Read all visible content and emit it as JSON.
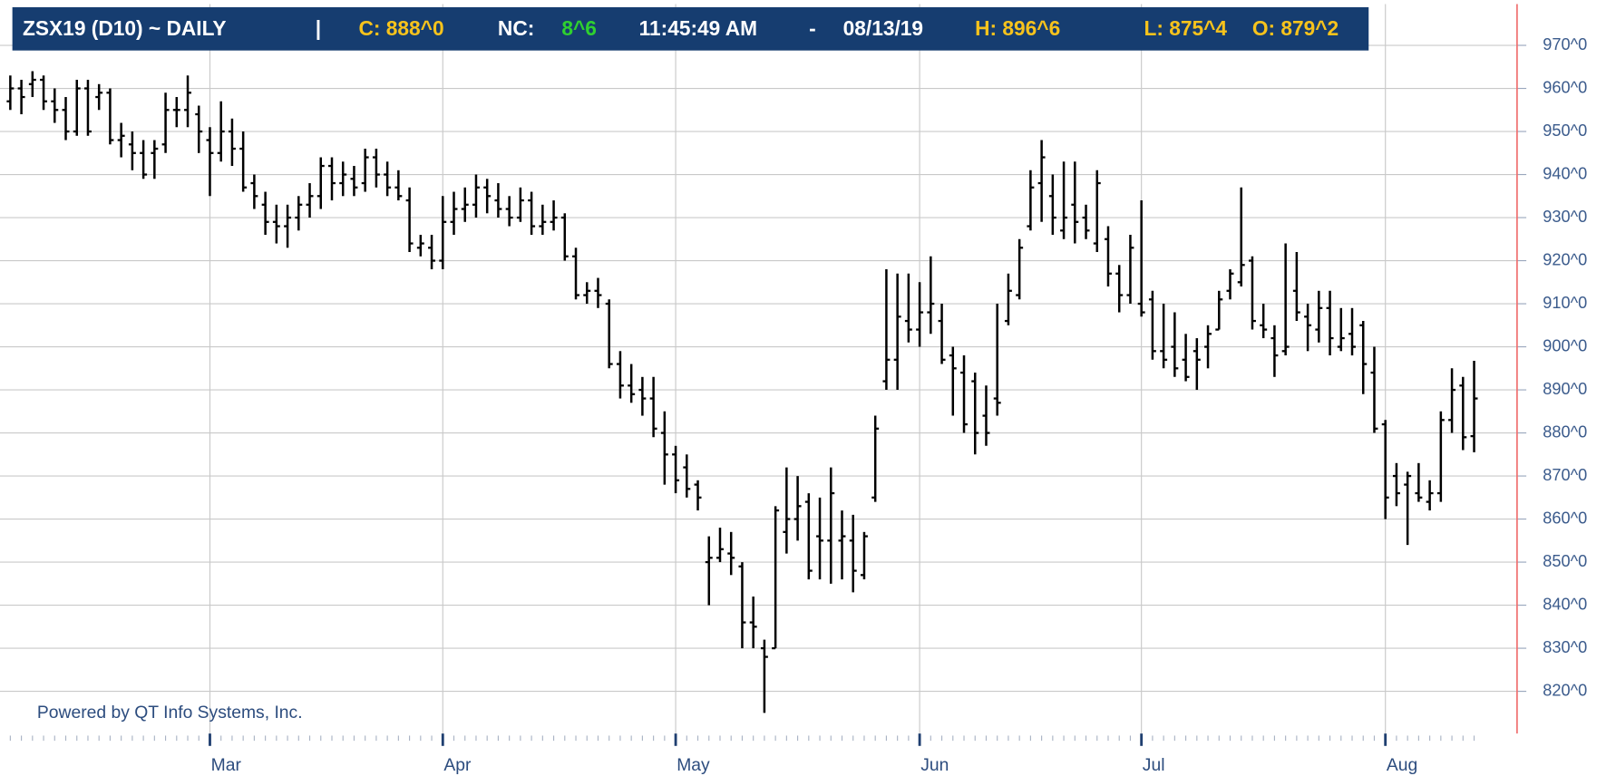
{
  "chart_data": {
    "type": "ohlc",
    "title": "ZSX19 (D10)  ~  DAILY",
    "header": [
      "|",
      "C: 888^0",
      "NC:",
      "8^6",
      "11:45:49 AM",
      "-",
      "08/13/19",
      "H: 896^6",
      "L: 875^4",
      "O: 879^2"
    ],
    "annotation": "Powered by QT Info Systems, Inc.",
    "color": "#000000",
    "grid": true,
    "categories": [
      null,
      null,
      null,
      null,
      null,
      null,
      null,
      null,
      null,
      null,
      null,
      null,
      null,
      null,
      null,
      null,
      null,
      null,
      "Mar",
      null,
      null,
      null,
      null,
      null,
      null,
      null,
      null,
      null,
      null,
      null,
      null,
      null,
      null,
      null,
      null,
      null,
      null,
      null,
      null,
      "Apr",
      null,
      null,
      null,
      null,
      null,
      null,
      null,
      null,
      null,
      null,
      null,
      null,
      null,
      null,
      null,
      null,
      null,
      null,
      null,
      null,
      "May",
      null,
      null,
      null,
      null,
      null,
      null,
      null,
      null,
      null,
      null,
      null,
      null,
      null,
      null,
      null,
      null,
      null,
      null,
      null,
      null,
      null,
      "Jun",
      null,
      null,
      null,
      null,
      null,
      null,
      null,
      null,
      null,
      null,
      null,
      null,
      null,
      null,
      null,
      null,
      null,
      null,
      null,
      "Jul",
      null,
      null,
      null,
      null,
      null,
      null,
      null,
      null,
      null,
      null,
      null,
      null,
      null,
      null,
      null,
      null,
      null,
      null,
      null,
      null,
      null,
      "Aug",
      null,
      null,
      null,
      null,
      null,
      null,
      null,
      null
    ],
    "open": [
      957,
      960,
      961,
      962,
      957,
      955,
      950,
      960,
      958,
      959,
      948,
      947,
      945,
      945,
      947,
      955,
      955,
      954,
      948,
      945,
      950,
      946,
      938,
      933,
      929,
      928,
      930,
      933,
      935,
      942,
      938,
      939,
      938,
      944,
      940,
      937,
      934,
      923,
      923,
      920,
      929,
      932,
      933,
      937,
      934,
      932,
      930,
      934,
      928,
      929,
      930,
      921,
      912,
      913,
      910,
      896,
      891,
      890,
      888,
      880,
      875,
      872,
      868,
      850,
      851,
      852,
      849,
      836,
      830,
      830,
      857,
      860,
      864,
      856,
      855,
      855,
      855,
      847,
      865,
      892,
      897,
      906,
      904,
      908,
      906,
      898,
      894,
      892,
      884,
      888,
      906,
      912,
      928,
      938,
      935,
      927,
      933,
      930,
      924,
      925,
      917,
      912,
      910,
      911,
      899,
      900,
      897,
      899,
      900,
      904,
      913,
      915,
      920,
      905,
      902,
      899,
      913,
      907,
      904,
      909,
      900,
      903,
      905,
      894,
      882,
      870,
      868,
      866,
      864,
      866,
      883,
      891,
      879.25
    ],
    "high": [
      963,
      962,
      964,
      963,
      960,
      958,
      962,
      962,
      961,
      960,
      952,
      950,
      948,
      948,
      959,
      958,
      963,
      956,
      951,
      957,
      953,
      950,
      940,
      936,
      933,
      933,
      935,
      938,
      944,
      944,
      943,
      942,
      946,
      946,
      943,
      941,
      937,
      926,
      926,
      935,
      936,
      937,
      940,
      939,
      938,
      935,
      937,
      936,
      933,
      934,
      931,
      923,
      915,
      916,
      911,
      899,
      896,
      893,
      893,
      885,
      877,
      875,
      869,
      856,
      858,
      857,
      850,
      842,
      832,
      863,
      872,
      870,
      866,
      865,
      872,
      862,
      861,
      857,
      884,
      918,
      917,
      917,
      915,
      921,
      910,
      900,
      898,
      894,
      891,
      910,
      917,
      925,
      941,
      948,
      940,
      943,
      943,
      933,
      941,
      928,
      919,
      926,
      934,
      913,
      910,
      908,
      903,
      902,
      905,
      913,
      918,
      937,
      921,
      910,
      905,
      924,
      922,
      910,
      913,
      913,
      909,
      909,
      906,
      900,
      883,
      873,
      871,
      873,
      869,
      885,
      895,
      893,
      896.75
    ],
    "low": [
      955,
      954,
      958,
      955,
      952,
      948,
      949,
      949,
      955,
      947,
      944,
      941,
      939,
      939,
      945,
      951,
      951,
      945,
      935,
      943,
      942,
      936,
      932,
      926,
      924,
      923,
      927,
      930,
      932,
      934,
      935,
      935,
      936,
      937,
      935,
      934,
      922,
      921,
      918,
      918,
      926,
      929,
      930,
      931,
      930,
      928,
      929,
      926,
      926,
      927,
      920,
      911,
      910,
      909,
      895,
      888,
      887,
      884,
      879,
      868,
      866,
      865,
      862,
      840,
      850,
      847,
      830,
      830,
      815,
      830,
      852,
      855,
      846,
      846,
      845,
      846,
      843,
      846,
      864,
      890,
      890,
      901,
      900,
      903,
      896,
      884,
      880,
      875,
      877,
      884,
      905,
      911,
      927,
      929,
      926,
      925,
      924,
      925,
      922,
      914,
      908,
      910,
      907,
      897,
      895,
      893,
      892,
      890,
      895,
      904,
      911,
      914,
      904,
      902,
      893,
      898,
      906,
      899,
      901,
      898,
      899,
      898,
      889,
      880,
      860,
      863,
      854,
      864,
      862,
      864,
      880,
      876,
      875.5
    ],
    "close": [
      960,
      958,
      962,
      957,
      955,
      950,
      960,
      950,
      959,
      948,
      949,
      945,
      940,
      946,
      955,
      955,
      959,
      950,
      945,
      950,
      946,
      937,
      935,
      929,
      928,
      930,
      933,
      935,
      942,
      938,
      940,
      937,
      944,
      940,
      937,
      935,
      924,
      924,
      920,
      929,
      932,
      933,
      937,
      935,
      932,
      930,
      934,
      928,
      929,
      930,
      921,
      912,
      913,
      912,
      896,
      891,
      889,
      888,
      881,
      875,
      869,
      867,
      865,
      851,
      853,
      851,
      836,
      835,
      828,
      862,
      860,
      863,
      848,
      855,
      866,
      856,
      848,
      856,
      881,
      897,
      907,
      904,
      908,
      910,
      897,
      895,
      882,
      880,
      880,
      887,
      913,
      923,
      937,
      944,
      930,
      930,
      929,
      927,
      938,
      917,
      912,
      923,
      908,
      899,
      897,
      895,
      893,
      897,
      903,
      911,
      917,
      919,
      906,
      904,
      898,
      900,
      908,
      905,
      909,
      902,
      902,
      900,
      896,
      881,
      865,
      866,
      870,
      865,
      866,
      883,
      890,
      879,
      888
    ],
    "ylim": [
      810,
      979
    ],
    "yticks": [
      {
        "value": 820,
        "label": "820^0"
      },
      {
        "value": 830,
        "label": "830^0"
      },
      {
        "value": 840,
        "label": "840^0"
      },
      {
        "value": 850,
        "label": "850^0"
      },
      {
        "value": 860,
        "label": "860^0"
      },
      {
        "value": 870,
        "label": "870^0"
      },
      {
        "value": 880,
        "label": "880^0"
      },
      {
        "value": 890,
        "label": "890^0"
      },
      {
        "value": 900,
        "label": "900^0"
      },
      {
        "value": 910,
        "label": "910^0"
      },
      {
        "value": 920,
        "label": "920^0"
      },
      {
        "value": 930,
        "label": "930^0"
      },
      {
        "value": 940,
        "label": "940^0"
      },
      {
        "value": 950,
        "label": "950^0"
      },
      {
        "value": 960,
        "label": "960^0"
      },
      {
        "value": 970,
        "label": "970^0"
      }
    ]
  }
}
